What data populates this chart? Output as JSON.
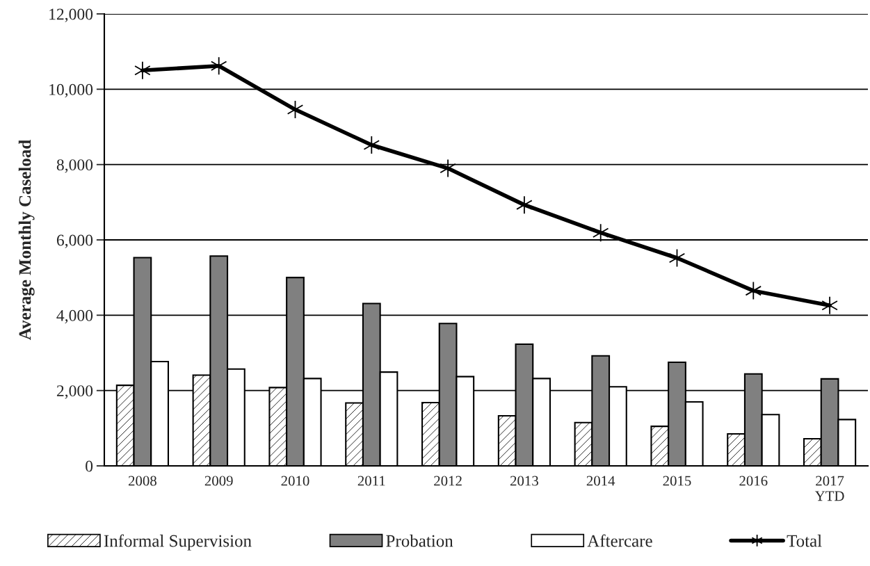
{
  "chart_data": {
    "type": "bar",
    "ylabel": "Average Monthly Caseload",
    "categories": [
      "2008",
      "2009",
      "2010",
      "2011",
      "2012",
      "2013",
      "2014",
      "2015",
      "2016",
      "2017\nYTD"
    ],
    "series": [
      {
        "name": "Informal Supervision",
        "color": "#ffffff",
        "values": [
          2140,
          2410,
          2080,
          1670,
          1680,
          1330,
          1150,
          1050,
          850,
          720
        ]
      },
      {
        "name": "Probation",
        "color": "#808080",
        "values": [
          5530,
          5570,
          5000,
          4310,
          3780,
          3230,
          2920,
          2750,
          2440,
          2310
        ]
      },
      {
        "name": "Aftercare",
        "color": "#ffffff",
        "values": [
          2770,
          2570,
          2320,
          2490,
          2370,
          2320,
          2100,
          1700,
          1360,
          1230
        ]
      },
      {
        "name": "Total",
        "type": "line",
        "color": "#000000",
        "marker": "cross",
        "values": [
          10500,
          10620,
          9460,
          8520,
          7900,
          6930,
          6190,
          5520,
          4650,
          4260
        ]
      }
    ],
    "ylim": [
      0,
      12000
    ],
    "yticks": [
      {
        "value": 0,
        "label": "0"
      },
      {
        "value": 2000,
        "label": "2,000"
      },
      {
        "value": 4000,
        "label": "4,000"
      },
      {
        "value": 6000,
        "label": "6,000"
      },
      {
        "value": 8000,
        "label": "8,000"
      },
      {
        "value": 10000,
        "label": "10,000"
      },
      {
        "value": 12000,
        "label": "12,000"
      }
    ],
    "grid": "y",
    "legend": "bottom"
  }
}
